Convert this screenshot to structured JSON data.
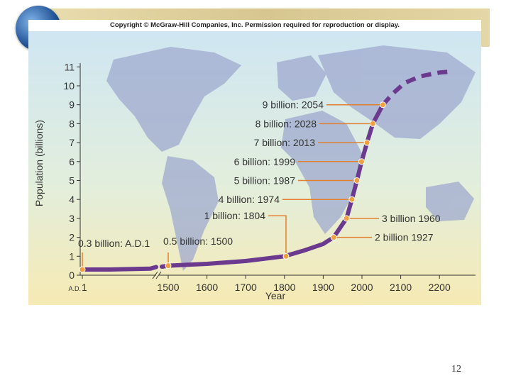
{
  "copyright": "Copyright © McGraw-Hill Companies, Inc. Permission required for reproduction or display.",
  "page_number": "12",
  "colors": {
    "curve": "#6b3a8e",
    "marker": "#f0a040",
    "annotation_line": "#e08030",
    "background_top": "#cfe6f2",
    "background_bottom": "#f6eab4"
  },
  "chart_data": {
    "type": "line",
    "title": "",
    "xlabel": "Year",
    "ylabel": "Population (billions)",
    "ylim": [
      0,
      11
    ],
    "y_ticks": [
      "0",
      "1",
      "2",
      "3",
      "4",
      "5",
      "6",
      "7",
      "8",
      "9",
      "10",
      "11"
    ],
    "x_ticks": [
      "A.D. 1",
      "1500",
      "1600",
      "1700",
      "1800",
      "1900",
      "2000",
      "2100",
      "2200"
    ],
    "x_axis_note": "broken axis between A.D. 1 and 1500",
    "series": [
      {
        "style": "solid",
        "x": [
          1,
          400,
          1000,
          1500,
          1600,
          1700,
          1800,
          1850,
          1900,
          1927,
          1960,
          1974,
          1987,
          1999,
          2013,
          2028,
          2054
        ],
        "y": [
          0.3,
          0.3,
          0.35,
          0.5,
          0.6,
          0.75,
          1.0,
          1.3,
          1.65,
          2.0,
          3.0,
          4.0,
          5.0,
          6.0,
          7.0,
          8.0,
          9.0
        ]
      },
      {
        "style": "dashed",
        "x": [
          2054,
          2080,
          2110,
          2150,
          2200,
          2230
        ],
        "y": [
          9.0,
          9.6,
          10.15,
          10.5,
          10.7,
          10.75
        ]
      }
    ],
    "markers": [
      {
        "label": "0.3 billion: A.D.1",
        "x": 1,
        "y": 0.3
      },
      {
        "label": "0.5 billion: 1500",
        "x": 1500,
        "y": 0.5
      },
      {
        "label": "1 billion: 1804",
        "x": 1804,
        "y": 1.0
      },
      {
        "label": "2 billion 1927",
        "x": 1927,
        "y": 2.0
      },
      {
        "label": "3 billion 1960",
        "x": 1960,
        "y": 3.0
      },
      {
        "label": "4 billion: 1974",
        "x": 1974,
        "y": 4.0
      },
      {
        "label": "5 billion: 1987",
        "x": 1987,
        "y": 5.0
      },
      {
        "label": "6 billion: 1999",
        "x": 1999,
        "y": 6.0
      },
      {
        "label": "7 billion: 2013",
        "x": 2013,
        "y": 7.0
      },
      {
        "label": "8 billion: 2028",
        "x": 2028,
        "y": 8.0
      },
      {
        "label": "9 billion: 2054",
        "x": 2054,
        "y": 9.0
      }
    ]
  }
}
